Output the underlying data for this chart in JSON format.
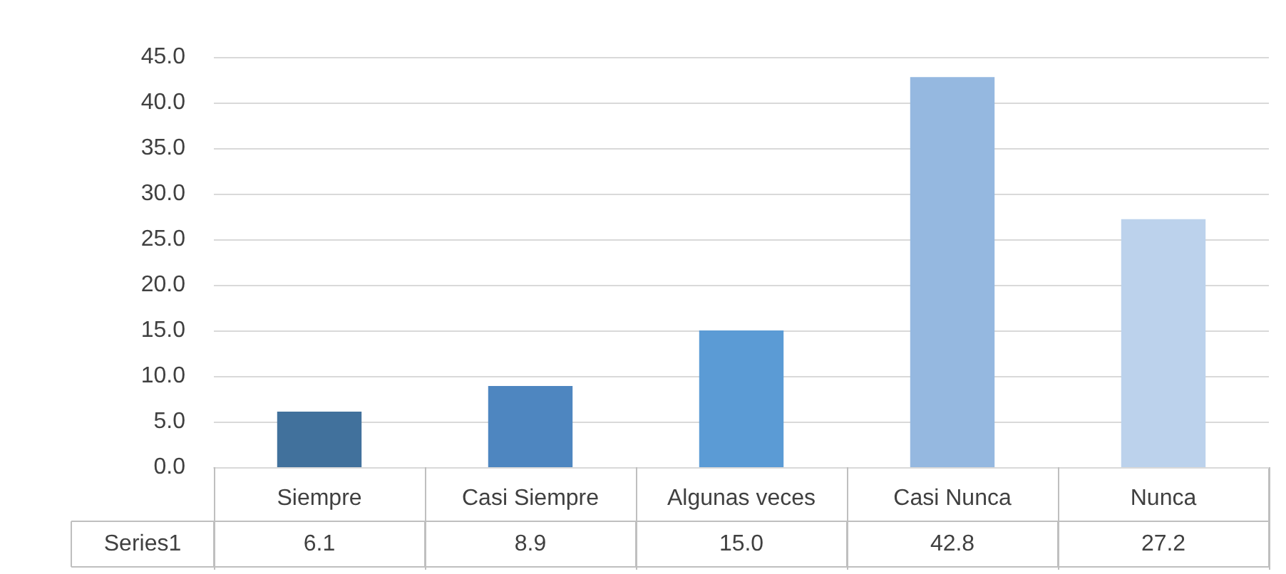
{
  "chart_data": {
    "type": "bar",
    "categories": [
      "Siempre",
      "Casi Siempre",
      "Algunas veces",
      "Casi Nunca",
      "Nunca"
    ],
    "series": [
      {
        "name": "Series1",
        "colors": [
          "#41719c",
          "#4e86c0",
          "#5b9bd5",
          "#95b8e0",
          "#bcd2ec"
        ],
        "values": [
          6.1,
          8.9,
          15.0,
          42.8,
          27.2
        ],
        "value_labels": [
          "6.1",
          "8.9",
          "15.0",
          "42.8",
          "27.2"
        ]
      }
    ],
    "ylim": [
      0,
      45
    ],
    "yticks": [
      {
        "value": 0,
        "label": "0.0"
      },
      {
        "value": 5,
        "label": "5.0"
      },
      {
        "value": 10,
        "label": "10.0"
      },
      {
        "value": 15,
        "label": "15.0"
      },
      {
        "value": 20,
        "label": "20.0"
      },
      {
        "value": 25,
        "label": "25.0"
      },
      {
        "value": 30,
        "label": "30.0"
      },
      {
        "value": 35,
        "label": "35.0"
      },
      {
        "value": 40,
        "label": "40.0"
      },
      {
        "value": 45,
        "label": "45.0"
      }
    ],
    "grid": "y",
    "legend": false
  }
}
